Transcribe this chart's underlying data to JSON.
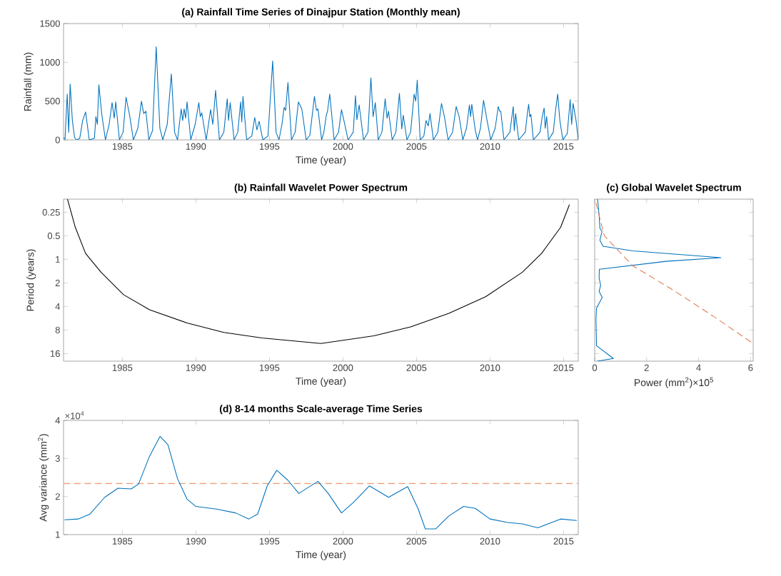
{
  "chart_data": [
    {
      "type": "line",
      "title": "(a) Rainfall Time Series of Dinajpur Station (Monthly mean)",
      "xlabel": "Time (year)",
      "ylabel": "Rainfall (mm)",
      "xlim": [
        1981,
        2016
      ],
      "ylim": [
        0,
        1500
      ],
      "xticks": [
        1985,
        1990,
        1995,
        2000,
        2005,
        2010,
        2015
      ],
      "yticks": [
        0,
        500,
        1000,
        1500
      ],
      "series": [
        {
          "color": "#0072bd",
          "x": [
            1981.0,
            1981.1,
            1981.25,
            1981.35,
            1981.45,
            1981.6,
            1981.75,
            1981.9,
            1982.1,
            1982.3,
            1982.5,
            1982.75,
            1983.1,
            1983.2,
            1983.3,
            1983.4,
            1983.6,
            1983.85,
            1984.1,
            1984.3,
            1984.45,
            1984.55,
            1984.8,
            1985.05,
            1985.25,
            1985.5,
            1985.75,
            1986.05,
            1986.3,
            1986.45,
            1986.6,
            1986.8,
            1987.05,
            1987.3,
            1987.55,
            1987.75,
            1988.05,
            1988.33,
            1988.55,
            1988.75,
            1989.0,
            1989.1,
            1989.2,
            1989.3,
            1989.4,
            1989.65,
            1989.95,
            1990.2,
            1990.3,
            1990.4,
            1990.7,
            1991.0,
            1991.15,
            1991.34,
            1991.6,
            1991.9,
            1992.13,
            1992.22,
            1992.33,
            1992.6,
            1992.85,
            1993.04,
            1993.12,
            1993.2,
            1993.45,
            1993.8,
            1994.0,
            1994.15,
            1994.3,
            1994.55,
            1994.9,
            1995.22,
            1995.45,
            1995.65,
            1995.85,
            1996.0,
            1996.1,
            1996.26,
            1996.5,
            1996.75,
            1996.97,
            1997.2,
            1997.5,
            1997.75,
            1998.06,
            1998.2,
            1998.3,
            1998.55,
            1998.7,
            1998.87,
            1998.95,
            1999.1,
            1999.4,
            1999.7,
            1999.9,
            2000.1,
            2000.35,
            2000.7,
            2000.85,
            2000.95,
            2001.1,
            2001.4,
            2001.7,
            2001.9,
            2002.05,
            2002.2,
            2002.4,
            2002.65,
            2002.87,
            2003.0,
            2003.1,
            2003.35,
            2003.6,
            2003.84,
            2004.0,
            2004.1,
            2004.35,
            2004.6,
            2004.84,
            2004.95,
            2005.05,
            2005.25,
            2005.5,
            2005.65,
            2005.8,
            2005.92,
            2006.15,
            2006.45,
            2006.7,
            2006.9,
            2007.15,
            2007.45,
            2007.7,
            2007.9,
            2008.15,
            2008.4,
            2008.6,
            2008.68,
            2008.76,
            2009.0,
            2009.15,
            2009.35,
            2009.56,
            2009.8,
            2010.05,
            2010.35,
            2010.56,
            2010.65,
            2010.73,
            2010.95,
            2011.35,
            2011.58,
            2011.65,
            2011.74,
            2011.95,
            2012.4,
            2012.55,
            2012.63,
            2012.7,
            2012.78,
            2012.95,
            2013.4,
            2013.55,
            2013.68,
            2013.75,
            2013.85,
            2013.98,
            2014.3,
            2014.45,
            2014.6,
            2014.75,
            2014.95,
            2015.25,
            2015.45,
            2015.55,
            2015.65,
            2015.85,
            2016.0
          ],
          "values": [
            30,
            10,
            590,
            100,
            720,
            250,
            30,
            0,
            20,
            250,
            360,
            0,
            20,
            300,
            200,
            710,
            330,
            0,
            200,
            480,
            280,
            490,
            0,
            100,
            550,
            310,
            0,
            150,
            500,
            340,
            370,
            0,
            120,
            1200,
            150,
            0,
            200,
            850,
            100,
            0,
            400,
            250,
            400,
            280,
            490,
            0,
            200,
            480,
            300,
            350,
            0,
            390,
            200,
            640,
            0,
            100,
            530,
            250,
            480,
            0,
            100,
            490,
            230,
            560,
            0,
            50,
            290,
            130,
            240,
            0,
            50,
            1020,
            100,
            0,
            200,
            420,
            380,
            740,
            0,
            100,
            490,
            400,
            0,
            60,
            560,
            380,
            400,
            0,
            100,
            320,
            370,
            590,
            0,
            100,
            390,
            220,
            0,
            100,
            570,
            260,
            450,
            0,
            100,
            800,
            300,
            480,
            0,
            100,
            530,
            280,
            370,
            0,
            100,
            600,
            140,
            320,
            0,
            100,
            590,
            500,
            770,
            0,
            50,
            250,
            180,
            340,
            0,
            100,
            470,
            300,
            0,
            100,
            430,
            300,
            0,
            150,
            450,
            300,
            460,
            120,
            0,
            150,
            510,
            250,
            0,
            150,
            430,
            370,
            370,
            0,
            100,
            430,
            120,
            340,
            0,
            100,
            360,
            460,
            300,
            330,
            0,
            100,
            300,
            410,
            150,
            300,
            0,
            100,
            370,
            590,
            250,
            0,
            80,
            520,
            200,
            470,
            250,
            0
          ]
        }
      ]
    },
    {
      "type": "line",
      "title": "(b) Rainfall Wavelet Power Spectrum",
      "xlabel": "Time (year)",
      "ylabel": "Period (years)",
      "log": "y",
      "xlim": [
        1981,
        2016
      ],
      "ylim": [
        20,
        0.17
      ],
      "xticks": [
        1985,
        1990,
        1995,
        2000,
        2005,
        2010,
        2015
      ],
      "yticks": [
        0.25,
        0.5,
        1,
        2,
        4,
        8,
        16
      ],
      "series": [
        {
          "color": "#000000",
          "x": [
            1981.27,
            1981.8,
            1982.5,
            1983.55,
            1985.08,
            1986.85,
            1989.4,
            1991.9,
            1994.5,
            1998.5,
            2002.1,
            2004.6,
            2007.2,
            2009.7,
            2012.2,
            2013.5,
            2014.8,
            2015.4
          ],
          "values": [
            0.17,
            0.39,
            0.84,
            1.46,
            2.83,
            4.4,
            6.5,
            8.6,
            10.1,
            11.9,
            9.5,
            7.3,
            4.9,
            3.0,
            1.46,
            0.84,
            0.39,
            0.2
          ]
        }
      ]
    },
    {
      "type": "line",
      "title": "(c) Global Wavelet Spectrum",
      "xlabel": "Power (mm$^{2}$)×10$^{5}$",
      "log": "y",
      "xlim": [
        0,
        6.1
      ],
      "ylim": [
        20,
        0.17
      ],
      "xticks": [
        0,
        2,
        4,
        6
      ],
      "yticks": [
        {
          "value": 0.25,
          "label": null
        },
        {
          "value": 0.5,
          "label": null
        },
        {
          "value": 1,
          "label": null
        },
        {
          "value": 2,
          "label": null
        },
        {
          "value": 4,
          "label": null
        },
        {
          "value": 8,
          "label": null
        },
        {
          "value": 16,
          "label": null
        }
      ],
      "tick_labels": "x",
      "series": [
        {
          "color": "#0072bd",
          "x": [
            0.11,
            0.17,
            0.2,
            0.28,
            0.2,
            0.32,
            1.47,
            4.86,
            2.75,
            0.18,
            0.17,
            0.23,
            0.17,
            0.29,
            0.07,
            0.05,
            0.07,
            0.72,
            0.1
          ],
          "values": [
            0.17,
            0.27,
            0.4,
            0.44,
            0.57,
            0.68,
            0.78,
            0.95,
            1.06,
            1.34,
            1.74,
            2.15,
            2.56,
            3.07,
            4.2,
            5.8,
            12.7,
            18.5,
            20
          ]
        },
        {
          "color": "#e07b50",
          "line_style": "dashed",
          "x": [
            0.05,
            0.37,
            1.47,
            3.03,
            4.59,
            6.1
          ],
          "values": [
            0.19,
            0.5,
            1.21,
            2.48,
            5.4,
            11.9
          ]
        }
      ]
    },
    {
      "type": "line",
      "title": "(d) 8-14 months Scale-average Time Series",
      "xlabel": "Time (year)",
      "ylabel": "Avg variance (mm$^{2}$)",
      "annotations": [
        "×10$^{4}$"
      ],
      "xlim": [
        1981,
        2016
      ],
      "ylim": [
        1,
        4
      ],
      "xticks": [
        1985,
        1990,
        1995,
        2000,
        2005,
        2010,
        2015
      ],
      "yticks": [
        1,
        2,
        3,
        4
      ],
      "ref_lines": [
        {
          "axis": "y",
          "value": 2.34,
          "color": "#eda07a",
          "line_style": "dashed"
        }
      ],
      "series": [
        {
          "color": "#0072bd",
          "x": [
            1981.07,
            1982.0,
            1982.8,
            1983.8,
            1984.7,
            1985.6,
            1986.1,
            1986.85,
            1987.56,
            1988.1,
            1988.75,
            1989.4,
            1990.0,
            1991.4,
            1992.7,
            1993.6,
            1994.2,
            1994.85,
            1995.5,
            1996.25,
            1997.0,
            1997.6,
            1998.3,
            1999.0,
            1999.9,
            2000.7,
            2001.8,
            2003.1,
            2004.4,
            2005.1,
            2005.6,
            2006.3,
            2007.2,
            2008.2,
            2009.0,
            2010.0,
            2011.2,
            2012.2,
            2013.25,
            2014.0,
            2014.8,
            2015.9
          ],
          "values": [
            1.39,
            1.41,
            1.54,
            1.98,
            2.22,
            2.2,
            2.33,
            3.06,
            3.58,
            3.36,
            2.47,
            1.93,
            1.74,
            1.67,
            1.57,
            1.41,
            1.54,
            2.28,
            2.69,
            2.43,
            2.08,
            2.23,
            2.4,
            2.08,
            1.57,
            1.84,
            2.28,
            1.98,
            2.26,
            1.69,
            1.15,
            1.15,
            1.49,
            1.74,
            1.69,
            1.41,
            1.32,
            1.28,
            1.18,
            1.29,
            1.41,
            1.37
          ]
        }
      ]
    }
  ]
}
